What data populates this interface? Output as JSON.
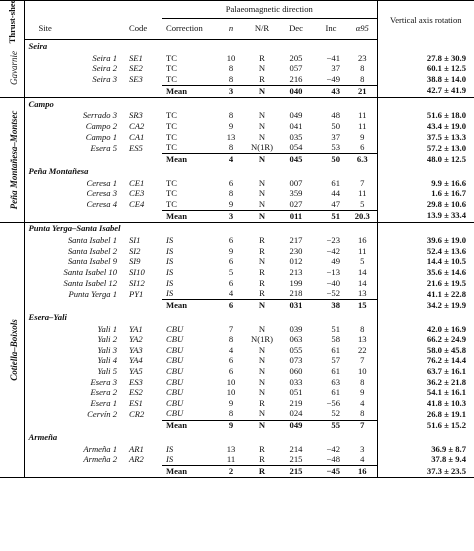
{
  "headers": {
    "sheet": "Thrust-sheet",
    "site": "Site",
    "code": "Code",
    "palaeo": "Palaeomagnetic direction",
    "correction": "Correction",
    "n": "n",
    "nr": "N/R",
    "dec": "Dec",
    "inc": "Inc",
    "a95": "α95",
    "vertical_axis_rotation": "Vertical axis rotation"
  },
  "sheets": [
    {
      "name": "Gavarnie",
      "groups": [
        {
          "name": "Seira",
          "rows": [
            {
              "site": "Seira 1",
              "code": "SE1",
              "corr": "TC",
              "n": "10",
              "nr": "R",
              "dec": "205",
              "inc": "−41",
              "a95": "23",
              "rot": "27.8 ± 30.9"
            },
            {
              "site": "Seira 2",
              "code": "SE2",
              "corr": "TC",
              "n": "8",
              "nr": "N",
              "dec": "057",
              "inc": "37",
              "a95": "8",
              "rot": "60.1 ± 12.5"
            },
            {
              "site": "Seira 3",
              "code": "SE3",
              "corr": "TC",
              "n": "8",
              "nr": "R",
              "dec": "216",
              "inc": "−49",
              "a95": "8",
              "rot": "38.8 ± 14.0"
            }
          ],
          "mean": {
            "label": "Mean",
            "n": "3",
            "nr": "N",
            "dec": "040",
            "inc": "43",
            "a95": "21",
            "rot": "42.7 ± 41.9"
          }
        }
      ]
    },
    {
      "name": "Peña Montañesa–Montsec",
      "groups": [
        {
          "name": "Campo",
          "rows": [
            {
              "site": "Serrado 3",
              "code": "SR3",
              "corr": "TC",
              "n": "8",
              "nr": "N",
              "dec": "049",
              "inc": "48",
              "a95": "11",
              "rot": "51.6 ± 18.0"
            },
            {
              "site": "Campo 2",
              "code": "CA2",
              "corr": "TC",
              "n": "9",
              "nr": "N",
              "dec": "041",
              "inc": "50",
              "a95": "11",
              "rot": "43.4 ± 19.0"
            },
            {
              "site": "Campo 1",
              "code": "CA1",
              "corr": "TC",
              "n": "13",
              "nr": "N",
              "dec": "035",
              "inc": "37",
              "a95": "9",
              "rot": "37.5 ± 13.3"
            },
            {
              "site": "Esera 5",
              "code": "ES5",
              "corr": "TC",
              "n": "8",
              "nr": "N(1R)",
              "dec": "054",
              "inc": "53",
              "a95": "6",
              "rot": "57.2 ± 13.0"
            }
          ],
          "mean": {
            "label": "Mean",
            "n": "4",
            "nr": "N",
            "dec": "045",
            "inc": "50",
            "a95": "6.3",
            "rot": "48.0 ± 12.5"
          }
        },
        {
          "name": "Peña Montañesa",
          "rows": [
            {
              "site": "Ceresa 1",
              "code": "CE1",
              "corr": "TC",
              "n": "6",
              "nr": "N",
              "dec": "007",
              "inc": "61",
              "a95": "7",
              "rot": "9.9 ± 16.6"
            },
            {
              "site": "Ceresa 3",
              "code": "CE3",
              "corr": "TC",
              "n": "8",
              "nr": "N",
              "dec": "359",
              "inc": "44",
              "a95": "11",
              "rot": "1.6 ± 16.7"
            },
            {
              "site": "Ceresa 4",
              "code": "CE4",
              "corr": "TC",
              "n": "9",
              "nr": "N",
              "dec": "027",
              "inc": "47",
              "a95": "5",
              "rot": "29.8 ± 10.6"
            }
          ],
          "mean": {
            "label": "Mean",
            "n": "3",
            "nr": "N",
            "dec": "011",
            "inc": "51",
            "a95": "20.3",
            "rot": "13.9 ± 33.4"
          }
        }
      ]
    },
    {
      "name": "Cotiella–Boixols",
      "groups": [
        {
          "name": "Punta Yerga–Santa Isabel",
          "rows": [
            {
              "site": "Santa Isabel 1",
              "code": "SI1",
              "corr": "IS",
              "n": "6",
              "nr": "R",
              "dec": "217",
              "inc": "−23",
              "a95": "16",
              "rot": "39.6 ± 19.0"
            },
            {
              "site": "Santa Isabel 2",
              "code": "SI2",
              "corr": "IS",
              "n": "9",
              "nr": "R",
              "dec": "230",
              "inc": "−42",
              "a95": "11",
              "rot": "52.4 ± 13.6"
            },
            {
              "site": "Santa Isabel 9",
              "code": "SI9",
              "corr": "IS",
              "n": "6",
              "nr": "N",
              "dec": "012",
              "inc": "49",
              "a95": "5",
              "rot": "14.4 ± 10.5"
            },
            {
              "site": "Santa Isabel 10",
              "code": "SI10",
              "corr": "IS",
              "n": "5",
              "nr": "R",
              "dec": "213",
              "inc": "−13",
              "a95": "14",
              "rot": "35.6 ± 14.6"
            },
            {
              "site": "Santa Isabel 12",
              "code": "SI12",
              "corr": "IS",
              "n": "6",
              "nr": "R",
              "dec": "199",
              "inc": "−40",
              "a95": "14",
              "rot": "21.6 ± 19.5"
            },
            {
              "site": "Punta Yerga 1",
              "code": "PY1",
              "corr": "IS",
              "n": "4",
              "nr": "R",
              "dec": "218",
              "inc": "−52",
              "a95": "13",
              "rot": "41.1 ± 22.8"
            }
          ],
          "mean": {
            "label": "Mean",
            "n": "6",
            "nr": "N",
            "dec": "031",
            "inc": "38",
            "a95": "15",
            "rot": "34.2 ± 19.9"
          }
        },
        {
          "name": "Esera–Yali",
          "rows": [
            {
              "site": "Yali 1",
              "code": "YA1",
              "corr": "CBU",
              "n": "7",
              "nr": "N",
              "dec": "039",
              "inc": "51",
              "a95": "8",
              "rot": "42.0 ± 16.9"
            },
            {
              "site": "Yali 2",
              "code": "YA2",
              "corr": "CBU",
              "n": "8",
              "nr": "N(1R)",
              "dec": "063",
              "inc": "58",
              "a95": "13",
              "rot": "66.2 ± 24.9"
            },
            {
              "site": "Yali 3",
              "code": "YA3",
              "corr": "CBU",
              "n": "4",
              "nr": "N",
              "dec": "055",
              "inc": "61",
              "a95": "22",
              "rot": "58.0 ± 45.8"
            },
            {
              "site": "Yali 4",
              "code": "YA4",
              "corr": "CBU",
              "n": "6",
              "nr": "N",
              "dec": "073",
              "inc": "57",
              "a95": "7",
              "rot": "76.2 ± 14.4"
            },
            {
              "site": "Yali 5",
              "code": "YA5",
              "corr": "CBU",
              "n": "6",
              "nr": "N",
              "dec": "060",
              "inc": "61",
              "a95": "10",
              "rot": "63.7 ± 16.1"
            },
            {
              "site": "Esera 3",
              "code": "ES3",
              "corr": "CBU",
              "n": "10",
              "nr": "N",
              "dec": "033",
              "inc": "63",
              "a95": "8",
              "rot": "36.2 ± 21.8"
            },
            {
              "site": "Esera 2",
              "code": "ES2",
              "corr": "CBU",
              "n": "10",
              "nr": "N",
              "dec": "051",
              "inc": "61",
              "a95": "9",
              "rot": "54.1 ± 16.1"
            },
            {
              "site": "Esera 1",
              "code": "ES1",
              "corr": "CBU",
              "n": "9",
              "nr": "R",
              "dec": "219",
              "inc": "−56",
              "a95": "4",
              "rot": "41.8 ± 10.3"
            },
            {
              "site": "Cervín 2",
              "code": "CR2",
              "corr": "CBU",
              "n": "8",
              "nr": "N",
              "dec": "024",
              "inc": "52",
              "a95": "8",
              "rot": "26.8 ± 19.1"
            }
          ],
          "mean": {
            "label": "Mean",
            "n": "9",
            "nr": "N",
            "dec": "049",
            "inc": "55",
            "a95": "7",
            "rot": "51.6 ± 15.2"
          }
        },
        {
          "name": "Armeña",
          "rows": [
            {
              "site": "Armeña 1",
              "code": "AR1",
              "corr": "IS",
              "n": "13",
              "nr": "R",
              "dec": "214",
              "inc": "−42",
              "a95": "3",
              "rot": "36.9 ± 8.7"
            },
            {
              "site": "Armeña 2",
              "code": "AR2",
              "corr": "IS",
              "n": "11",
              "nr": "R",
              "dec": "215",
              "inc": "−48",
              "a95": "4",
              "rot": "37.8 ± 9.4"
            }
          ],
          "mean": {
            "label": "Mean",
            "n": "2",
            "nr": "R",
            "dec": "215",
            "inc": "−45",
            "a95": "16",
            "rot": "37.3 ± 23.5"
          }
        }
      ]
    }
  ]
}
